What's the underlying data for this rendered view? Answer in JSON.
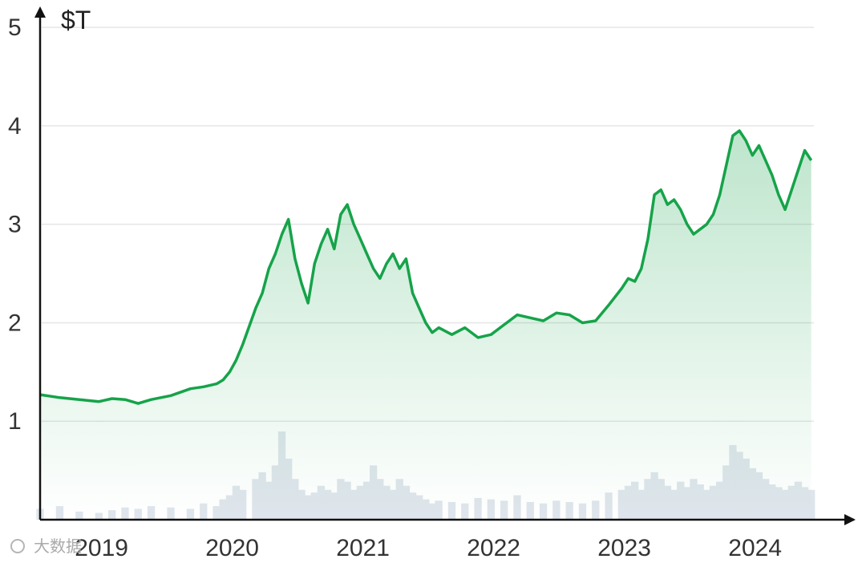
{
  "chart_data": {
    "type": "area",
    "y_unit_label": "$T",
    "x_tick_labels": [
      "2019",
      "2020",
      "2021",
      "2022",
      "2023",
      "2024"
    ],
    "y_tick_labels": [
      "1",
      "2",
      "3",
      "4",
      "5"
    ],
    "y_ticks": [
      1,
      2,
      3,
      4,
      5
    ],
    "xlim": [
      2018.55,
      2024.47
    ],
    "ylim": [
      0,
      5.05
    ],
    "grid": true,
    "colors": {
      "line": "#16a34a",
      "fill_top": "#16a34a",
      "grid": "#e6e6e6",
      "axis": "#111111",
      "volume": "#dfe5ec"
    },
    "series": [
      {
        "x": [
          2018.55,
          2018.7,
          2018.85,
          2019.0,
          2019.1,
          2019.2,
          2019.3,
          2019.4,
          2019.55,
          2019.7,
          2019.8,
          2019.9,
          2019.95,
          2020.0,
          2020.05,
          2020.1,
          2020.2,
          2020.25,
          2020.3,
          2020.35,
          2020.4,
          2020.45,
          2020.5,
          2020.55,
          2020.6,
          2020.65,
          2020.7,
          2020.75,
          2020.8,
          2020.85,
          2020.9,
          2020.95,
          2021.0,
          2021.05,
          2021.1,
          2021.15,
          2021.2,
          2021.25,
          2021.3,
          2021.35,
          2021.4,
          2021.45,
          2021.5,
          2021.55,
          2021.6,
          2021.7,
          2021.8,
          2021.9,
          2022.0,
          2022.1,
          2022.2,
          2022.3,
          2022.4,
          2022.5,
          2022.6,
          2022.7,
          2022.8,
          2022.9,
          2023.0,
          2023.05,
          2023.1,
          2023.15,
          2023.2,
          2023.25,
          2023.3,
          2023.35,
          2023.4,
          2023.45,
          2023.5,
          2023.55,
          2023.6,
          2023.65,
          2023.7,
          2023.75,
          2023.8,
          2023.85,
          2023.9,
          2023.95,
          2024.0,
          2024.05,
          2024.1,
          2024.15,
          2024.2,
          2024.25,
          2024.3,
          2024.35,
          2024.4,
          2024.45
        ],
        "y": [
          1.27,
          1.24,
          1.22,
          1.2,
          1.23,
          1.22,
          1.18,
          1.22,
          1.26,
          1.33,
          1.35,
          1.38,
          1.42,
          1.5,
          1.62,
          1.78,
          2.15,
          2.3,
          2.55,
          2.7,
          2.9,
          3.05,
          2.65,
          2.4,
          2.2,
          2.6,
          2.8,
          2.95,
          2.75,
          3.1,
          3.2,
          3.0,
          2.85,
          2.7,
          2.55,
          2.45,
          2.6,
          2.7,
          2.55,
          2.65,
          2.3,
          2.15,
          2.0,
          1.9,
          1.95,
          1.88,
          1.95,
          1.85,
          1.88,
          1.98,
          2.08,
          2.05,
          2.02,
          2.1,
          2.08,
          2.0,
          2.02,
          2.18,
          2.35,
          2.45,
          2.42,
          2.55,
          2.85,
          3.3,
          3.35,
          3.2,
          3.25,
          3.15,
          3.0,
          2.9,
          2.95,
          3.0,
          3.1,
          3.3,
          3.6,
          3.9,
          3.95,
          3.85,
          3.7,
          3.8,
          3.65,
          3.5,
          3.3,
          3.15,
          3.35,
          3.55,
          3.75,
          3.65
        ],
        "volume": [
          0.08,
          0.1,
          0.06,
          0.05,
          0.07,
          0.09,
          0.08,
          0.1,
          0.09,
          0.08,
          0.12,
          0.1,
          0.15,
          0.18,
          0.25,
          0.22,
          0.3,
          0.35,
          0.28,
          0.4,
          0.65,
          0.45,
          0.3,
          0.22,
          0.18,
          0.2,
          0.25,
          0.22,
          0.2,
          0.3,
          0.28,
          0.22,
          0.25,
          0.28,
          0.4,
          0.3,
          0.25,
          0.22,
          0.3,
          0.25,
          0.2,
          0.18,
          0.15,
          0.12,
          0.14,
          0.13,
          0.12,
          0.16,
          0.15,
          0.14,
          0.18,
          0.13,
          0.12,
          0.14,
          0.13,
          0.12,
          0.14,
          0.2,
          0.22,
          0.25,
          0.28,
          0.22,
          0.3,
          0.35,
          0.3,
          0.25,
          0.22,
          0.28,
          0.24,
          0.3,
          0.26,
          0.22,
          0.25,
          0.28,
          0.4,
          0.55,
          0.5,
          0.45,
          0.38,
          0.35,
          0.3,
          0.26,
          0.24,
          0.22,
          0.25,
          0.28,
          0.24,
          0.22
        ]
      }
    ]
  },
  "watermark": {
    "text": "大数据"
  }
}
